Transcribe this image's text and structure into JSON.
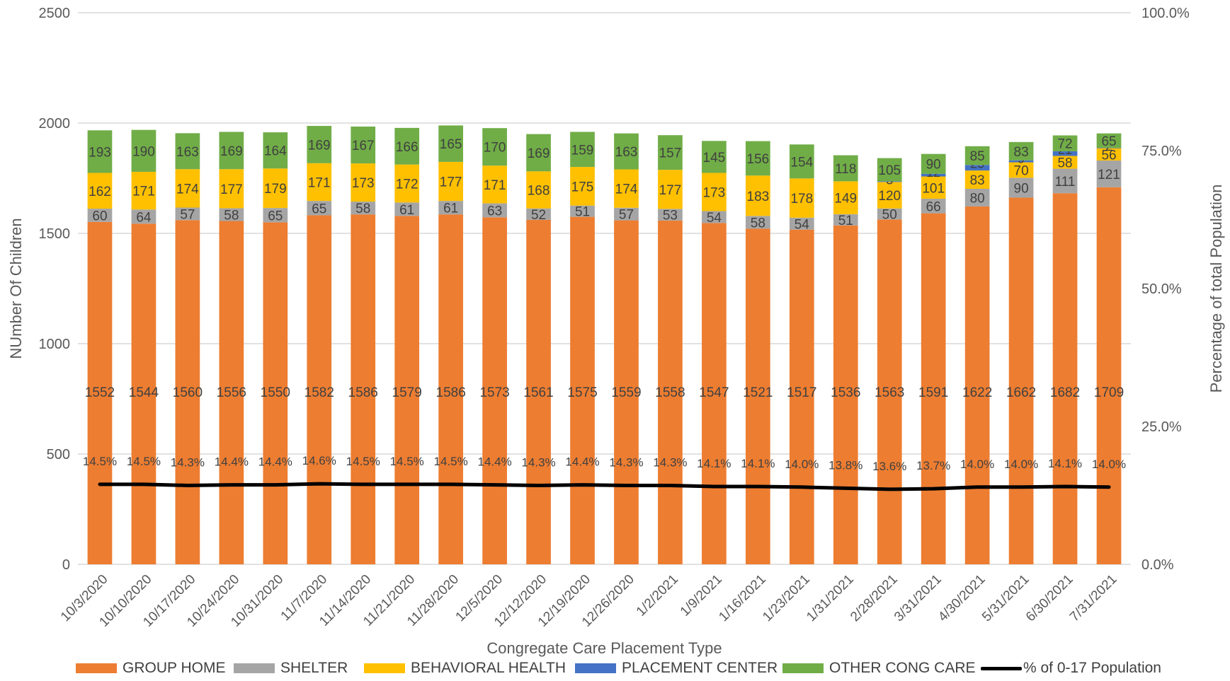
{
  "chart_data": {
    "type": "bar",
    "stacked": true,
    "xlabel": "Congregate Care Placement Type",
    "ylabel": "NUmber Of Children",
    "y2label": "Percentage of total Population",
    "ylim": [
      0,
      2500
    ],
    "y2lim": [
      0,
      100
    ],
    "yticks": [
      "0",
      "500",
      "1000",
      "1500",
      "2000",
      "2500"
    ],
    "y2ticks": [
      "0.0%",
      "25.0%",
      "50.0%",
      "75.0%",
      "100.0%"
    ],
    "grid": true,
    "legend_position": "bottom",
    "categories": [
      "10/3/2020",
      "10/10/2020",
      "10/17/2020",
      "10/24/2020",
      "10/31/2020",
      "11/7/2020",
      "11/14/2020",
      "11/21/2020",
      "11/28/2020",
      "12/5/2020",
      "12/12/2020",
      "12/19/2020",
      "12/26/2020",
      "1/2/2021",
      "1/9/2021",
      "1/16/2021",
      "1/23/2021",
      "1/31/2021",
      "2/28/2021",
      "3/31/2021",
      "4/30/2021",
      "5/31/2021",
      "6/30/2021",
      "7/31/2021"
    ],
    "series": [
      {
        "name": "GROUP HOME",
        "color": "#ED7D31",
        "values": [
          1552,
          1544,
          1560,
          1556,
          1550,
          1582,
          1586,
          1579,
          1586,
          1573,
          1561,
          1575,
          1559,
          1558,
          1547,
          1521,
          1517,
          1536,
          1563,
          1591,
          1622,
          1662,
          1682,
          1709
        ]
      },
      {
        "name": "SHELTER",
        "color": "#A5A5A5",
        "values": [
          60,
          64,
          57,
          58,
          65,
          65,
          58,
          61,
          61,
          63,
          52,
          51,
          57,
          53,
          54,
          58,
          54,
          51,
          50,
          66,
          80,
          90,
          111,
          121
        ]
      },
      {
        "name": "BEHAVIORAL HEALTH",
        "color": "#FFC000",
        "values": [
          162,
          171,
          174,
          177,
          179,
          171,
          173,
          172,
          177,
          171,
          168,
          175,
          174,
          177,
          173,
          183,
          178,
          149,
          120,
          101,
          83,
          70,
          58,
          56
        ]
      },
      {
        "name": "PLACEMENT CENTER",
        "color": "#4472C4",
        "values": [
          0,
          0,
          0,
          0,
          0,
          0,
          0,
          0,
          0,
          0,
          0,
          0,
          0,
          0,
          0,
          0,
          0,
          0,
          3,
          12,
          25,
          9,
          21,
          2
        ]
      },
      {
        "name": "OTHER CONG CARE",
        "color": "#70AD47",
        "values": [
          193,
          190,
          163,
          169,
          164,
          169,
          167,
          166,
          165,
          170,
          169,
          159,
          163,
          157,
          145,
          156,
          154,
          118,
          105,
          90,
          85,
          83,
          72,
          65
        ]
      }
    ],
    "line_series": {
      "name": "% of 0-17 Population",
      "color": "#000000",
      "axis": "y2",
      "values": [
        14.5,
        14.5,
        14.3,
        14.4,
        14.4,
        14.6,
        14.5,
        14.5,
        14.5,
        14.4,
        14.3,
        14.4,
        14.3,
        14.3,
        14.1,
        14.1,
        14.0,
        13.8,
        13.6,
        13.7,
        14.0,
        14.0,
        14.1,
        14.0
      ],
      "labels": [
        "14.5%",
        "14.5%",
        "14.3%",
        "14.4%",
        "14.4%",
        "14.6%",
        "14.5%",
        "14.5%",
        "14.5%",
        "14.4%",
        "14.3%",
        "14.4%",
        "14.3%",
        "14.3%",
        "14.1%",
        "14.1%",
        "14.0%",
        "13.8%",
        "13.6%",
        "13.7%",
        "14.0%",
        "14.0%",
        "14.1%",
        "14.0%"
      ]
    }
  }
}
